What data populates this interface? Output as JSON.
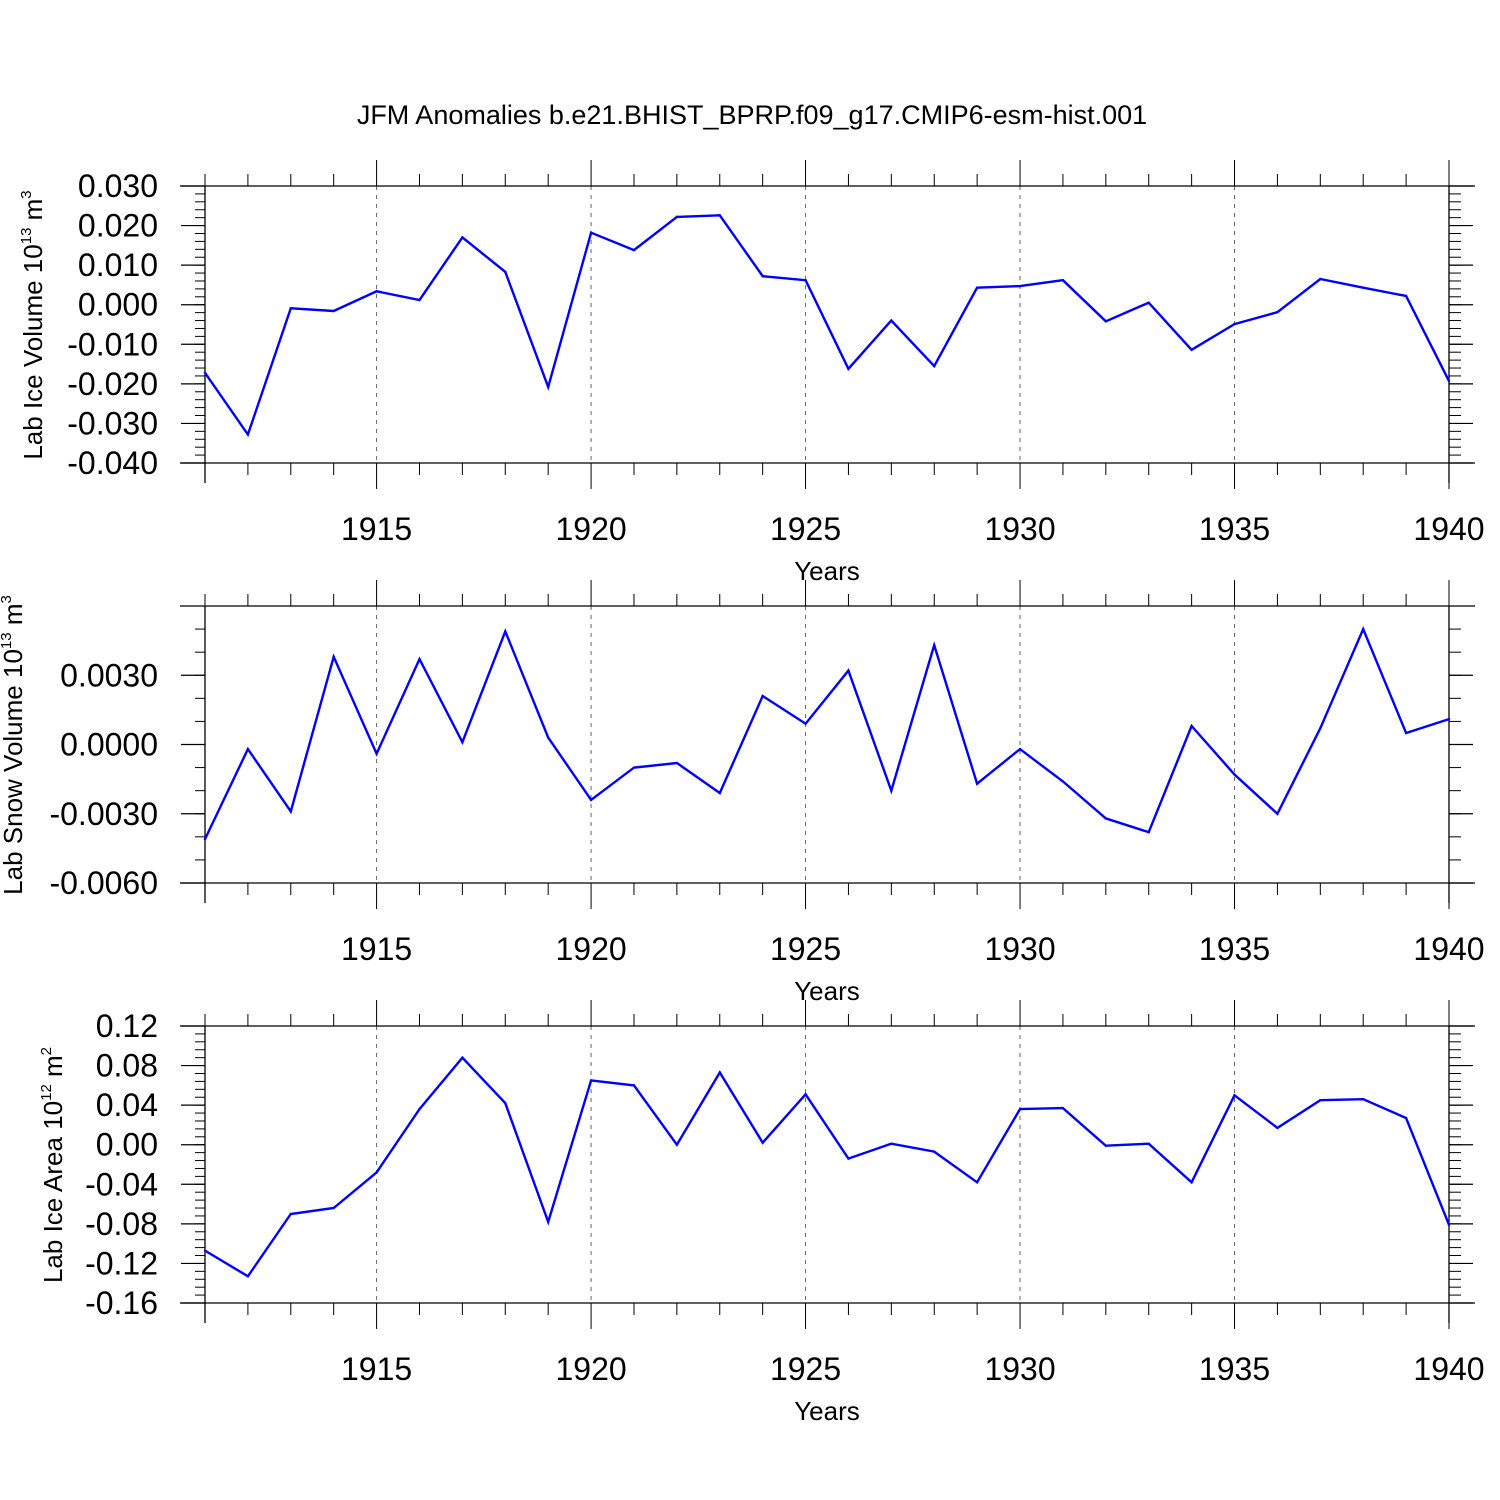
{
  "figure": {
    "title": "JFM Anomalies b.e21.BHIST_BPRP.f09_g17.CMIP6-esm-hist.001"
  },
  "chart_data": [
    {
      "type": "line",
      "name": "ice-volume",
      "xlabel": "Years",
      "ylabel": {
        "text": "Lab Ice Volume 10",
        "exponent": "13",
        "unit": " m",
        "unit_exponent": "3"
      },
      "xlim": [
        1911,
        1940
      ],
      "ylim": [
        -0.04,
        0.03
      ],
      "xticks": [
        1915,
        1920,
        1925,
        1930,
        1935,
        1940
      ],
      "xtick_labels": [
        "1915",
        "1920",
        "1925",
        "1930",
        "1935",
        "1940"
      ],
      "yticks": [
        -0.04,
        -0.03,
        -0.02,
        -0.01,
        0.0,
        0.01,
        0.02,
        0.03
      ],
      "ytick_labels": [
        "-0.040",
        "-0.030",
        "-0.020",
        "-0.010",
        "0.000",
        "0.010",
        "0.020",
        "0.030"
      ],
      "yminor_step": 0.002,
      "line_color": "#0000ff",
      "x": [
        1911,
        1912,
        1913,
        1914,
        1915,
        1916,
        1917,
        1918,
        1919,
        1920,
        1921,
        1922,
        1923,
        1924,
        1925,
        1926,
        1927,
        1928,
        1929,
        1930,
        1931,
        1932,
        1933,
        1934,
        1935,
        1936,
        1937,
        1938,
        1939,
        1940
      ],
      "values": [
        -0.0172,
        -0.0328,
        -0.0009,
        -0.0016,
        0.0034,
        0.0012,
        0.017,
        0.0083,
        -0.0208,
        0.0182,
        0.0138,
        0.0222,
        0.0226,
        0.0072,
        0.0062,
        -0.0162,
        -0.004,
        -0.0155,
        0.0043,
        0.0047,
        0.0062,
        -0.0042,
        0.0005,
        -0.0114,
        -0.0049,
        -0.0019,
        0.0065,
        0.0043,
        0.0022,
        -0.0193
      ]
    },
    {
      "type": "line",
      "name": "snow-volume",
      "xlabel": "Years",
      "ylabel": {
        "text": "Lab Snow Volume 10",
        "exponent": "13",
        "unit": " m",
        "unit_exponent": "3"
      },
      "xlim": [
        1911,
        1940
      ],
      "ylim": [
        -0.006,
        0.006
      ],
      "xticks": [
        1915,
        1920,
        1925,
        1930,
        1935,
        1940
      ],
      "xtick_labels": [
        "1915",
        "1920",
        "1925",
        "1930",
        "1935",
        "1940"
      ],
      "yticks": [
        -0.006,
        -0.003,
        0.0,
        0.003
      ],
      "ytick_labels": [
        "-0.0060",
        "-0.0030",
        "0.0000",
        "0.0030"
      ],
      "yminor_step": 0.001,
      "line_color": "#0000ff",
      "x": [
        1911,
        1912,
        1913,
        1914,
        1915,
        1916,
        1917,
        1918,
        1919,
        1920,
        1921,
        1922,
        1923,
        1924,
        1925,
        1926,
        1927,
        1928,
        1929,
        1930,
        1931,
        1932,
        1933,
        1934,
        1935,
        1936,
        1937,
        1938,
        1939,
        1940
      ],
      "values": [
        -0.0041,
        -0.0002,
        -0.0029,
        0.0038,
        -0.0004,
        0.0037,
        0.0001,
        0.0049,
        0.0003,
        -0.0024,
        -0.001,
        -0.0008,
        -0.0021,
        0.0021,
        0.0009,
        0.0032,
        -0.002,
        0.0043,
        -0.0017,
        -0.0002,
        -0.0016,
        -0.0032,
        -0.0038,
        0.0008,
        -0.0013,
        -0.003,
        0.0007,
        0.005,
        0.0005,
        0.0011
      ]
    },
    {
      "type": "line",
      "name": "ice-area",
      "xlabel": "Years",
      "ylabel": {
        "text": "Lab Ice Area 10",
        "exponent": "12",
        "unit": " m",
        "unit_exponent": "2"
      },
      "xlim": [
        1911,
        1940
      ],
      "ylim": [
        -0.16,
        0.12
      ],
      "xticks": [
        1915,
        1920,
        1925,
        1930,
        1935,
        1940
      ],
      "xtick_labels": [
        "1915",
        "1920",
        "1925",
        "1930",
        "1935",
        "1940"
      ],
      "yticks": [
        -0.16,
        -0.12,
        -0.08,
        -0.04,
        0.0,
        0.04,
        0.08,
        0.12
      ],
      "ytick_labels": [
        "-0.16",
        "-0.12",
        "-0.08",
        "-0.04",
        "0.00",
        "0.04",
        "0.08",
        "0.12"
      ],
      "yminor_step": 0.008,
      "line_color": "#0000ff",
      "x": [
        1911,
        1912,
        1913,
        1914,
        1915,
        1916,
        1917,
        1918,
        1919,
        1920,
        1921,
        1922,
        1923,
        1924,
        1925,
        1926,
        1927,
        1928,
        1929,
        1930,
        1931,
        1932,
        1933,
        1934,
        1935,
        1936,
        1937,
        1938,
        1939,
        1940
      ],
      "values": [
        -0.107,
        -0.133,
        -0.07,
        -0.064,
        -0.028,
        0.036,
        0.088,
        0.042,
        -0.078,
        0.065,
        0.06,
        0.0,
        0.073,
        0.002,
        0.051,
        -0.014,
        0.001,
        -0.007,
        -0.038,
        0.036,
        0.037,
        -0.001,
        0.001,
        -0.038,
        0.05,
        0.017,
        0.045,
        0.046,
        0.027,
        -0.081
      ]
    }
  ]
}
